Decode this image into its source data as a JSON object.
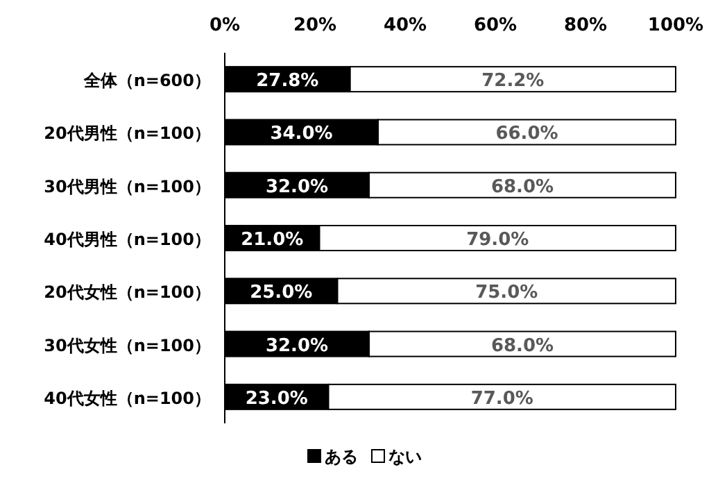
{
  "chart_data": {
    "type": "bar",
    "orientation": "horizontal",
    "stacked": true,
    "categories": [
      "全体（n=600）",
      "20代男性（n=100）",
      "30代男性（n=100）",
      "40代男性（n=100）",
      "20代女性（n=100）",
      "30代女性（n=100）",
      "40代女性（n=100）"
    ],
    "series": [
      {
        "name": "ある",
        "color": "#000000",
        "values": [
          27.8,
          34.0,
          32.0,
          21.0,
          25.0,
          32.0,
          23.0
        ],
        "value_labels": [
          "27.8%",
          "34.0%",
          "32.0%",
          "21.0%",
          "25.0%",
          "32.0%",
          "23.0%"
        ]
      },
      {
        "name": "ない",
        "color": "#ffffff",
        "values": [
          72.2,
          66.0,
          68.0,
          79.0,
          75.0,
          68.0,
          77.0
        ],
        "value_labels": [
          "72.2%",
          "66.0%",
          "68.0%",
          "79.0%",
          "75.0%",
          "68.0%",
          "77.0%"
        ]
      }
    ],
    "xlim": [
      0,
      100
    ],
    "xticks": [
      {
        "value": 0,
        "label": "0%"
      },
      {
        "value": 20,
        "label": "20%"
      },
      {
        "value": 40,
        "label": "40%"
      },
      {
        "value": 60,
        "label": "60%"
      },
      {
        "value": 80,
        "label": "80%"
      },
      {
        "value": 100,
        "label": "100%"
      }
    ],
    "legend": "bottom"
  }
}
